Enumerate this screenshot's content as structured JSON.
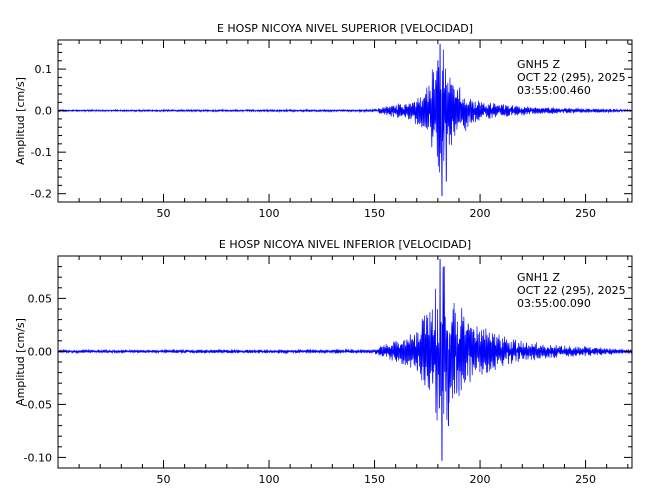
{
  "chart_data": [
    {
      "type": "line",
      "title": "E HOSP NICOYA NIVEL SUPERIOR [VELOCIDAD]",
      "ylabel": "Amplitud [cm/s]",
      "xlabel": "",
      "xlim": [
        0,
        272
      ],
      "ylim": [
        -0.22,
        0.17
      ],
      "xticks": [
        50,
        100,
        150,
        200,
        250
      ],
      "yticks": [
        -0.2,
        -0.1,
        0.0,
        0.1
      ],
      "ytick_labels": [
        "-0.2",
        "-0.1",
        "0.0",
        "0.1"
      ],
      "annotation": [
        "GNH5   Z",
        "OCT 22 (295), 2025",
        "03:55:00.460"
      ],
      "series": [
        {
          "color": "#0000ff",
          "envelope_points": [
            [
              0,
              0.002
            ],
            [
              150,
              0.003
            ],
            [
              153,
              0.008
            ],
            [
              160,
              0.02
            ],
            [
              165,
              0.022
            ],
            [
              170,
              0.035
            ],
            [
              175,
              0.06
            ],
            [
              178,
              0.11
            ],
            [
              180,
              0.155
            ],
            [
              181,
              0.165
            ],
            [
              182,
              0.21
            ],
            [
              183,
              0.14
            ],
            [
              186,
              0.09
            ],
            [
              190,
              0.07
            ],
            [
              195,
              0.04
            ],
            [
              200,
              0.025
            ],
            [
              210,
              0.018
            ],
            [
              220,
              0.012
            ],
            [
              240,
              0.007
            ],
            [
              272,
              0.003
            ]
          ],
          "peaks": [
            [
              181,
              0.16
            ],
            [
              182,
              -0.205
            ],
            [
              180,
              0.12
            ],
            [
              184,
              -0.17
            ]
          ]
        }
      ]
    },
    {
      "type": "line",
      "title": "E HOSP NICOYA NIVEL INFERIOR [VELOCIDAD]",
      "ylabel": "Amplitud [cm/s]",
      "xlabel": "",
      "xlim": [
        0,
        272
      ],
      "ylim": [
        -0.11,
        0.09
      ],
      "xticks": [
        50,
        100,
        150,
        200,
        250
      ],
      "yticks": [
        -0.1,
        -0.05,
        0.0,
        0.05
      ],
      "ytick_labels": [
        "-0.10",
        "-0.05",
        "0.00",
        "0.05"
      ],
      "annotation": [
        "GNH1   Z",
        "OCT 22 (295), 2025",
        "03:55:00.090"
      ],
      "series": [
        {
          "color": "#0000ff",
          "envelope_points": [
            [
              0,
              0.0015
            ],
            [
              150,
              0.002
            ],
            [
              153,
              0.006
            ],
            [
              160,
              0.01
            ],
            [
              165,
              0.015
            ],
            [
              170,
              0.022
            ],
            [
              175,
              0.045
            ],
            [
              178,
              0.06
            ],
            [
              180,
              0.08
            ],
            [
              181,
              0.088
            ],
            [
              182,
              0.1
            ],
            [
              184,
              0.075
            ],
            [
              186,
              0.055
            ],
            [
              190,
              0.045
            ],
            [
              195,
              0.035
            ],
            [
              200,
              0.025
            ],
            [
              210,
              0.015
            ],
            [
              220,
              0.01
            ],
            [
              240,
              0.006
            ],
            [
              272,
              0.002
            ]
          ],
          "peaks": [
            [
              181,
              0.087
            ],
            [
              182,
              -0.103
            ],
            [
              183,
              0.08
            ],
            [
              185,
              -0.07
            ]
          ]
        }
      ]
    }
  ]
}
